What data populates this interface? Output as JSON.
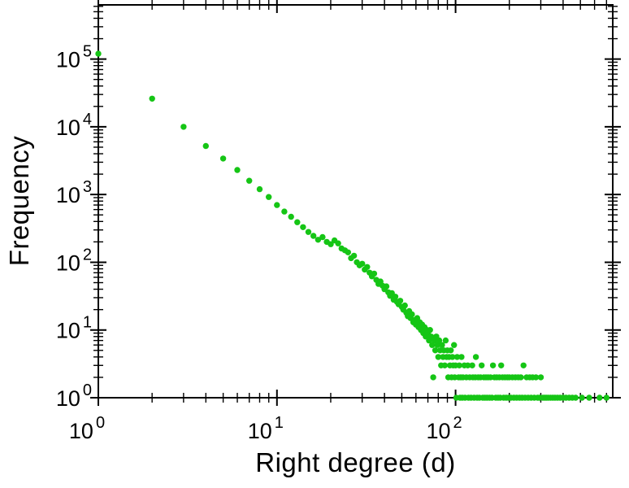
{
  "chart_data": {
    "type": "scatter",
    "title": "",
    "xlabel": "Right degree (d)",
    "ylabel": "Frequency",
    "x_scale": "log",
    "y_scale": "log",
    "x_range_log10": [
      0,
      2.88
    ],
    "y_range_log10": [
      0,
      5.8
    ],
    "x_major_ticks_log10": [
      0,
      1,
      2
    ],
    "y_major_ticks_log10": [
      0,
      1,
      2,
      3,
      4,
      5
    ],
    "tick_label_base": "10",
    "x_tick_exponents": [
      "0",
      "1",
      "2"
    ],
    "y_tick_exponents": [
      "0",
      "1",
      "2",
      "3",
      "4",
      "5"
    ],
    "grid": false,
    "legend": "none",
    "marker_color": "#15c515",
    "axis_color": "#000000",
    "points": [
      [
        1,
        120000
      ],
      [
        2,
        26000
      ],
      [
        3,
        10000
      ],
      [
        4,
        5200
      ],
      [
        5,
        3400
      ],
      [
        6,
        2300
      ],
      [
        7,
        1600
      ],
      [
        8,
        1200
      ],
      [
        9,
        920
      ],
      [
        10,
        700
      ],
      [
        11,
        560
      ],
      [
        12,
        470
      ],
      [
        13,
        390
      ],
      [
        14,
        330
      ],
      [
        15,
        280
      ],
      [
        16,
        245
      ],
      [
        17,
        215
      ],
      [
        18,
        235
      ],
      [
        19,
        200
      ],
      [
        20,
        185
      ],
      [
        21,
        210
      ],
      [
        22,
        190
      ],
      [
        23,
        160
      ],
      [
        24,
        150
      ],
      [
        25,
        140
      ],
      [
        26,
        115
      ],
      [
        27,
        125
      ],
      [
        28,
        100
      ],
      [
        29,
        90
      ],
      [
        30,
        95
      ],
      [
        31,
        78
      ],
      [
        32,
        85
      ],
      [
        33,
        70
      ],
      [
        34,
        62
      ],
      [
        35,
        68
      ],
      [
        36,
        55
      ],
      [
        37,
        48
      ],
      [
        38,
        52
      ],
      [
        39,
        45
      ],
      [
        40,
        40
      ],
      [
        41,
        44
      ],
      [
        42,
        36
      ],
      [
        43,
        32
      ],
      [
        44,
        35
      ],
      [
        45,
        28
      ],
      [
        46,
        31
      ],
      [
        47,
        26
      ],
      [
        48,
        24
      ],
      [
        49,
        27
      ],
      [
        50,
        22
      ],
      [
        51,
        20
      ],
      [
        52,
        23
      ],
      [
        53,
        18
      ],
      [
        54,
        16
      ],
      [
        55,
        19
      ],
      [
        56,
        15
      ],
      [
        57,
        17
      ],
      [
        58,
        13
      ],
      [
        59,
        14
      ],
      [
        60,
        12
      ],
      [
        61,
        15
      ],
      [
        62,
        11
      ],
      [
        63,
        13
      ],
      [
        64,
        10
      ],
      [
        65,
        12
      ],
      [
        66,
        9
      ],
      [
        67,
        11
      ],
      [
        68,
        8
      ],
      [
        69,
        10
      ],
      [
        70,
        9
      ],
      [
        71,
        7
      ],
      [
        72,
        10
      ],
      [
        73,
        8
      ],
      [
        74,
        6
      ],
      [
        75,
        2
      ],
      [
        76,
        7
      ],
      [
        77,
        5
      ],
      [
        78,
        8
      ],
      [
        79,
        6
      ],
      [
        80,
        4
      ],
      [
        81,
        7
      ],
      [
        82,
        5
      ],
      [
        83,
        3
      ],
      [
        84,
        6
      ],
      [
        85,
        4
      ],
      [
        86,
        5
      ],
      [
        87,
        3
      ],
      [
        88,
        7
      ],
      [
        89,
        4
      ],
      [
        90,
        5
      ],
      [
        91,
        2
      ],
      [
        92,
        4
      ],
      [
        93,
        3
      ],
      [
        94,
        5
      ],
      [
        95,
        2
      ],
      [
        96,
        4
      ],
      [
        97,
        3
      ],
      [
        98,
        6
      ],
      [
        99,
        2
      ],
      [
        100,
        3
      ],
      [
        101,
        1
      ],
      [
        102,
        4
      ],
      [
        104,
        2
      ],
      [
        105,
        3
      ],
      [
        106,
        1
      ],
      [
        107,
        2
      ],
      [
        108,
        4
      ],
      [
        109,
        1
      ],
      [
        110,
        2
      ],
      [
        112,
        3
      ],
      [
        113,
        1
      ],
      [
        115,
        2
      ],
      [
        117,
        3
      ],
      [
        118,
        1
      ],
      [
        120,
        2
      ],
      [
        122,
        1
      ],
      [
        124,
        3
      ],
      [
        125,
        2
      ],
      [
        127,
        1
      ],
      [
        129,
        2
      ],
      [
        130,
        4
      ],
      [
        132,
        1
      ],
      [
        134,
        2
      ],
      [
        136,
        1
      ],
      [
        138,
        2
      ],
      [
        140,
        3
      ],
      [
        142,
        1
      ],
      [
        144,
        2
      ],
      [
        146,
        1
      ],
      [
        148,
        2
      ],
      [
        150,
        1
      ],
      [
        152,
        2
      ],
      [
        155,
        1
      ],
      [
        157,
        2
      ],
      [
        160,
        1
      ],
      [
        162,
        3
      ],
      [
        165,
        2
      ],
      [
        168,
        1
      ],
      [
        170,
        2
      ],
      [
        173,
        1
      ],
      [
        176,
        2
      ],
      [
        178,
        1
      ],
      [
        180,
        3
      ],
      [
        183,
        2
      ],
      [
        186,
        1
      ],
      [
        189,
        2
      ],
      [
        192,
        1
      ],
      [
        195,
        2
      ],
      [
        198,
        1
      ],
      [
        200,
        2
      ],
      [
        204,
        1
      ],
      [
        208,
        2
      ],
      [
        212,
        1
      ],
      [
        216,
        2
      ],
      [
        220,
        1
      ],
      [
        224,
        2
      ],
      [
        228,
        1
      ],
      [
        232,
        2
      ],
      [
        236,
        1
      ],
      [
        240,
        3
      ],
      [
        245,
        1
      ],
      [
        250,
        2
      ],
      [
        255,
        1
      ],
      [
        260,
        2
      ],
      [
        265,
        1
      ],
      [
        270,
        2
      ],
      [
        276,
        1
      ],
      [
        282,
        2
      ],
      [
        288,
        1
      ],
      [
        295,
        1
      ],
      [
        300,
        2
      ],
      [
        308,
        1
      ],
      [
        315,
        1
      ],
      [
        322,
        1
      ],
      [
        330,
        1
      ],
      [
        340,
        1
      ],
      [
        350,
        1
      ],
      [
        360,
        1
      ],
      [
        372,
        1
      ],
      [
        385,
        1
      ],
      [
        400,
        1
      ],
      [
        415,
        1
      ],
      [
        432,
        1
      ],
      [
        450,
        1
      ],
      [
        470,
        1
      ],
      [
        510,
        1
      ],
      [
        560,
        1
      ],
      [
        640,
        1
      ],
      [
        700,
        1
      ]
    ]
  }
}
